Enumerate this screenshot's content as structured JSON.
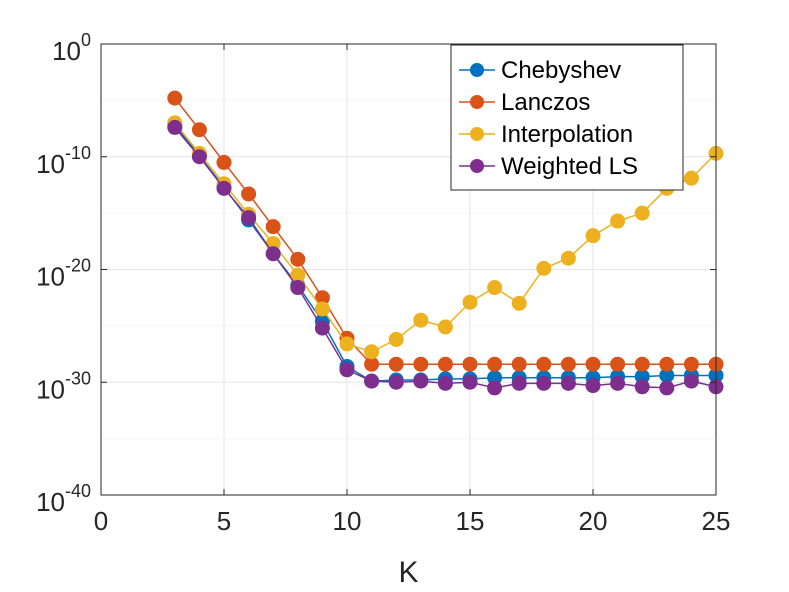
{
  "chart_data": {
    "type": "line",
    "title": "",
    "xlabel": "K",
    "ylabel": "",
    "y_scale": "log",
    "xlim": [
      0,
      25
    ],
    "ylim_exponent": [
      -40,
      0
    ],
    "x_ticks": [
      0,
      5,
      10,
      15,
      20,
      25
    ],
    "x_tick_labels": [
      "0",
      "5",
      "10",
      "15",
      "20",
      "25"
    ],
    "y_ticks_exponent": [
      -40,
      -30,
      -20,
      -10,
      0
    ],
    "y_tick_base": "10",
    "y_tick_exponent_labels": [
      "-40",
      "-30",
      "-20",
      "-10",
      "0"
    ],
    "grid": true,
    "legend_position": "top-right",
    "x": [
      3,
      4,
      5,
      6,
      7,
      8,
      9,
      10,
      11,
      12,
      13,
      14,
      15,
      16,
      17,
      18,
      19,
      20,
      21,
      22,
      23,
      24,
      25
    ],
    "series": [
      {
        "name": "Chebyshev",
        "color": "#0072BD",
        "log10_values": [
          -7.2,
          -9.9,
          -12.7,
          -15.6,
          -18.6,
          -21.4,
          -24.6,
          -28.6,
          -29.9,
          -29.8,
          -29.8,
          -29.7,
          -29.7,
          -29.6,
          -29.6,
          -29.6,
          -29.6,
          -29.6,
          -29.5,
          -29.5,
          -29.4,
          -29.4,
          -29.4
        ]
      },
      {
        "name": "Lanczos",
        "color": "#D95319",
        "log10_values": [
          -4.8,
          -7.6,
          -10.5,
          -13.3,
          -16.2,
          -19.1,
          -22.5,
          -26.1,
          -28.4,
          -28.4,
          -28.4,
          -28.4,
          -28.4,
          -28.4,
          -28.4,
          -28.4,
          -28.4,
          -28.4,
          -28.4,
          -28.4,
          -28.4,
          -28.4,
          -28.4
        ]
      },
      {
        "name": "Interpolation",
        "color": "#EDB120",
        "log10_values": [
          -7.0,
          -9.7,
          -12.4,
          -15.1,
          -17.7,
          -20.5,
          -23.5,
          -26.6,
          -27.3,
          -26.2,
          -24.5,
          -25.1,
          -22.9,
          -21.6,
          -23.0,
          -19.9,
          -19.0,
          -17.0,
          -15.7,
          -15.0,
          -12.8,
          -11.9,
          -9.7
        ]
      },
      {
        "name": "Weighted LS",
        "color": "#7E2F8E",
        "log10_values": [
          -7.4,
          -10.0,
          -12.8,
          -15.4,
          -18.6,
          -21.6,
          -25.2,
          -28.9,
          -29.9,
          -30.0,
          -29.9,
          -30.1,
          -30.0,
          -30.5,
          -30.1,
          -30.1,
          -30.1,
          -30.3,
          -30.1,
          -30.4,
          -30.5,
          -29.9,
          -30.4
        ]
      }
    ]
  }
}
